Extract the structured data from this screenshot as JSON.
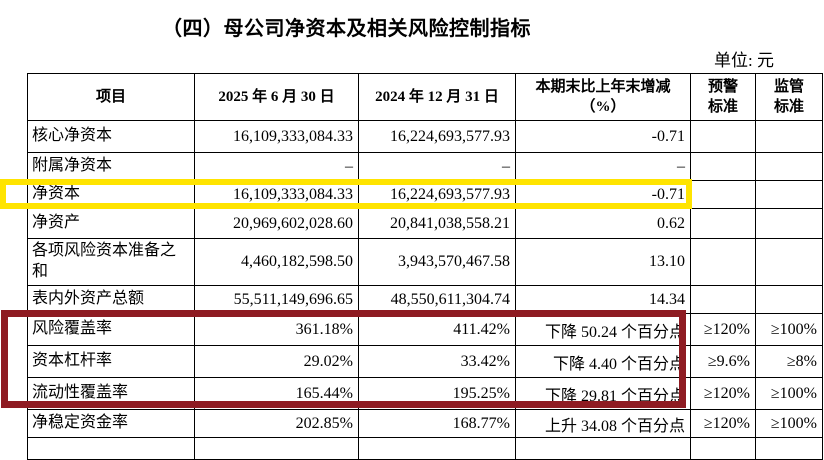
{
  "title": "（四）母公司净资本及相关风险控制指标",
  "unit_label": "单位: 元",
  "table": {
    "headers": [
      [
        "项目"
      ],
      [
        "2025 年 6 月 30 日"
      ],
      [
        "2024 年 12 月 31 日"
      ],
      [
        "本期末比上年末增减",
        "（%）"
      ],
      [
        "预警",
        "标准"
      ],
      [
        "监管",
        "标准"
      ]
    ],
    "rows": [
      {
        "item": "核心净资本",
        "v2025": "16,109,333,084.33",
        "v2024": "16,224,693,577.93",
        "change": "-0.71",
        "warning": "",
        "regulatory": ""
      },
      {
        "item": "附属净资本",
        "v2025": "–",
        "v2024": "–",
        "change": "–",
        "warning": "",
        "regulatory": ""
      },
      {
        "item": "净资本",
        "v2025": "16,109,333,084.33",
        "v2024": "16,224,693,577.93",
        "change": "-0.71",
        "warning": "",
        "regulatory": ""
      },
      {
        "item": "净资产",
        "v2025": "20,969,602,028.60",
        "v2024": "20,841,038,558.21",
        "change": "0.62",
        "warning": "",
        "regulatory": ""
      },
      {
        "item": "各项风险资本准备之和",
        "v2025": "4,460,182,598.50",
        "v2024": "3,943,570,467.58",
        "change": "13.10",
        "warning": "",
        "regulatory": ""
      },
      {
        "item": "表内外资产总额",
        "v2025": "55,511,149,696.65",
        "v2024": "48,550,611,304.74",
        "change": "14.34",
        "warning": "",
        "regulatory": ""
      },
      {
        "item": "风险覆盖率",
        "v2025": "361.18%",
        "v2024": "411.42%",
        "change": "下降 50.24 个百分点",
        "warning": "≥120%",
        "regulatory": "≥100%"
      },
      {
        "item": "资本杠杆率",
        "v2025": "29.02%",
        "v2024": "33.42%",
        "change": "下降 4.40 个百分点",
        "warning": "≥9.6%",
        "regulatory": "≥8%"
      },
      {
        "item": "流动性覆盖率",
        "v2025": "165.44%",
        "v2024": "195.25%",
        "change": "下降 29.81 个百分点",
        "warning": "≥120%",
        "regulatory": "≥100%"
      },
      {
        "item": "净稳定资金率",
        "v2025": "202.85%",
        "v2024": "168.77%",
        "change": "上升 34.08 个百分点",
        "warning": "≥120%",
        "regulatory": "≥100%"
      }
    ]
  },
  "annotations": {
    "yellow_box_color": "#FFE400",
    "red_box_color": "#8E1B22",
    "yellow_highlighted_row": "净资本",
    "red_highlighted_rows": [
      "风险覆盖率",
      "资本杠杆率",
      "流动性覆盖率"
    ]
  }
}
